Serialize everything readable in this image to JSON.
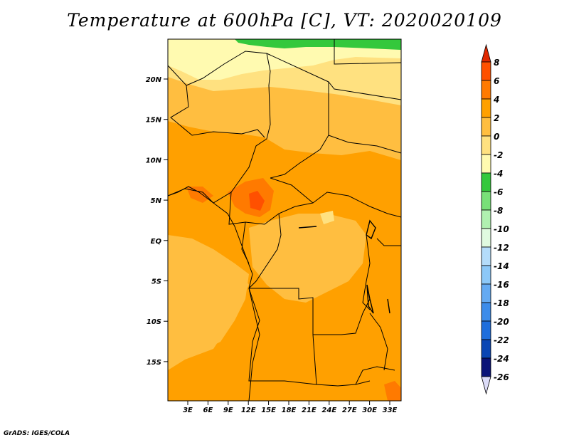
{
  "title": "Temperature at 600hPa [C], VT: 2020020109",
  "credit": "GrADS: IGES/COLA",
  "map": {
    "y_ticks": [
      "20N",
      "15N",
      "10N",
      "5N",
      "EQ",
      "5S",
      "10S",
      "15S"
    ],
    "x_ticks": [
      "3E",
      "6E",
      "9E",
      "12E",
      "15E",
      "18E",
      "21E",
      "24E",
      "27E",
      "30E",
      "33E"
    ]
  },
  "colorbar": {
    "labels": [
      "8",
      "6",
      "4",
      "2",
      "0",
      "-2",
      "-4",
      "-6",
      "-8",
      "-10",
      "-12",
      "-14",
      "-16",
      "-18",
      "-20",
      "-22",
      "-24",
      "-26"
    ],
    "colors": [
      "#e02800",
      "#ff5000",
      "#ff7a00",
      "#ffa000",
      "#ffbe40",
      "#ffe180",
      "#fffab0",
      "#34c83c",
      "#78e078",
      "#b0f0b0",
      "#e0fae0",
      "#b4dcfa",
      "#8cc8f8",
      "#64aaf2",
      "#3c8cea",
      "#1e6edc",
      "#0a46b4",
      "#0a1478",
      "#dcdcf8"
    ]
  }
}
